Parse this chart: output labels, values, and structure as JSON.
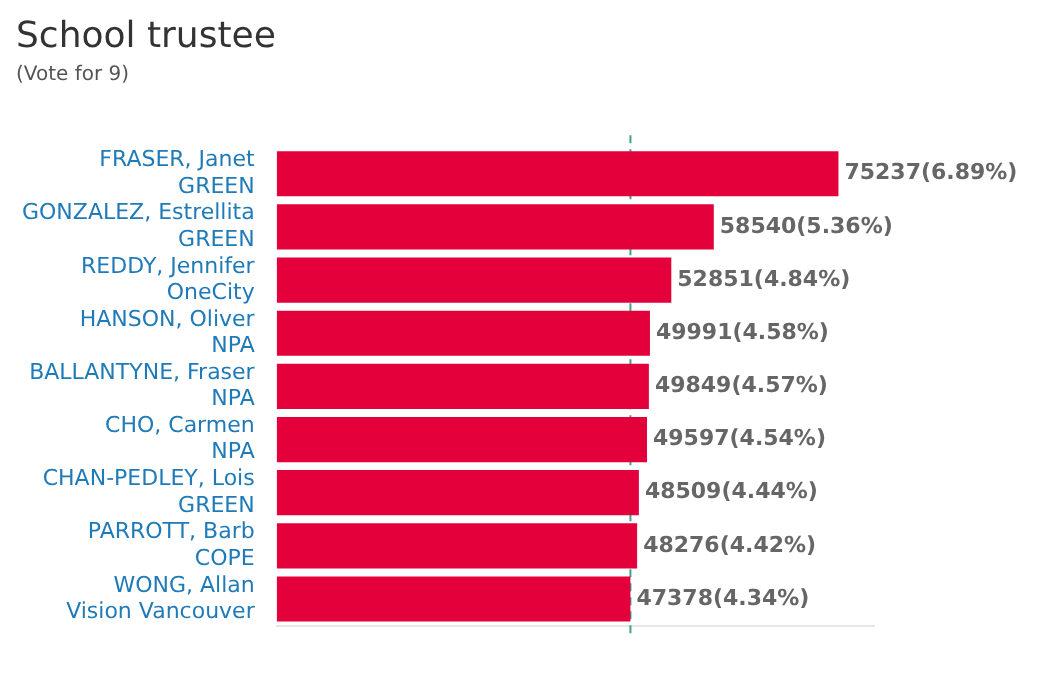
{
  "chart_data": {
    "type": "bar",
    "orientation": "horizontal",
    "title": "School trustee",
    "subtitle": "(Vote for 9)",
    "categories": [
      "FRASER, Janet\nGREEN",
      "GONZALEZ, Estrellita\nGREEN",
      "REDDY, Jennifer\nOneCity",
      "HANSON, Oliver\nNPA",
      "BALLANTYNE, Fraser\nNPA",
      "CHO, Carmen\nNPA",
      "CHAN-PEDLEY, Lois\nGREEN",
      "PARROTT, Barb\nCOPE",
      "WONG, Allan\nVision Vancouver"
    ],
    "values": [
      75237,
      58540,
      52851,
      49991,
      49849,
      49597,
      48509,
      48276,
      47378
    ],
    "value_labels": [
      "75237(6.89%)",
      "58540(5.36%)",
      "52851(4.84%)",
      "49991(4.58%)",
      "49849(4.57%)",
      "49597(4.54%)",
      "48509(4.44%)",
      "48276(4.42%)",
      "47378(4.34%)"
    ],
    "color": "#e4003b",
    "ref_lines": [
      {
        "axis": "x",
        "value": 47378,
        "color": "#3aa58a",
        "line_style": "dashed"
      }
    ],
    "grid": false,
    "legend": false,
    "tick_labels": "y"
  }
}
